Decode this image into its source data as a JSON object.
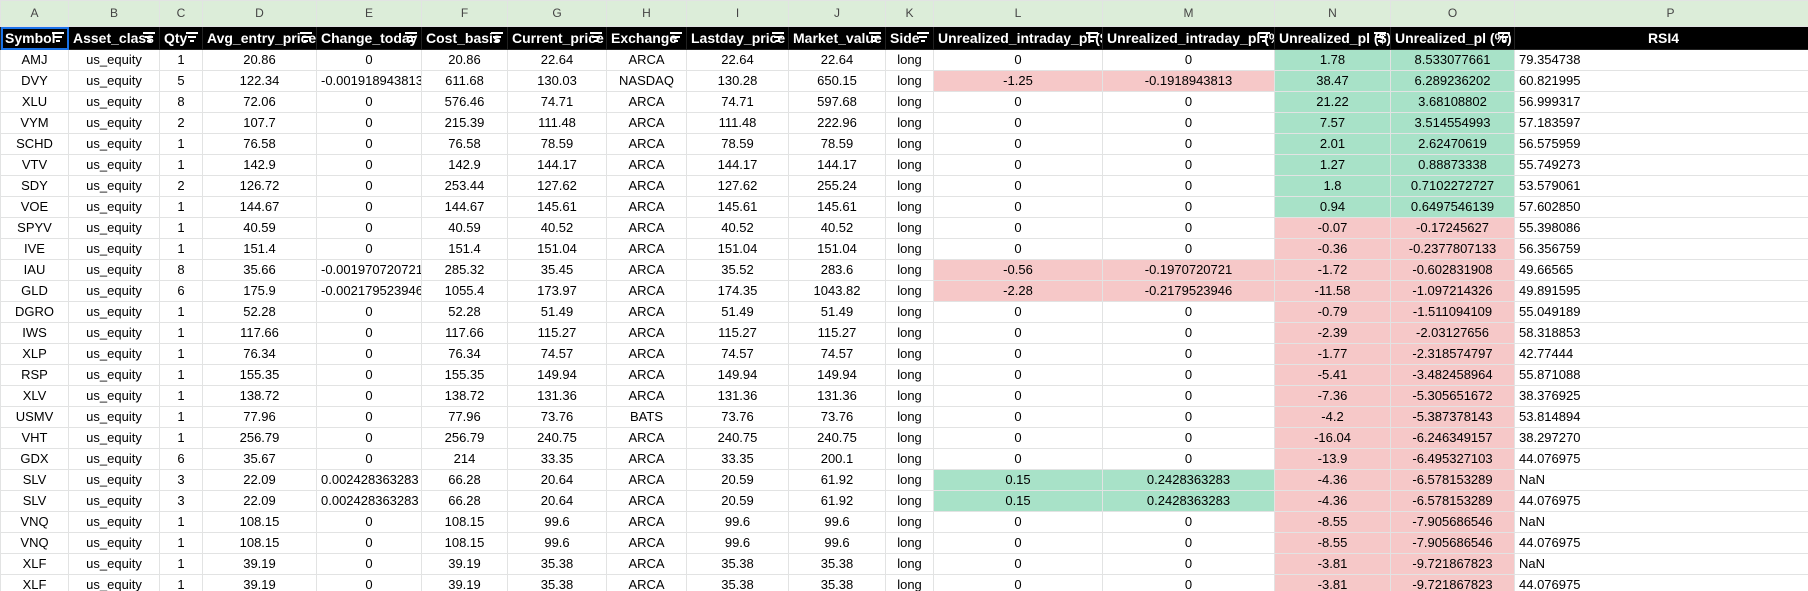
{
  "column_letters": [
    "A",
    "B",
    "C",
    "D",
    "E",
    "F",
    "G",
    "H",
    "I",
    "J",
    "K",
    "L",
    "M",
    "N",
    "O",
    "P"
  ],
  "headers": [
    "Symbol",
    "Asset_class",
    "Qty",
    "Avg_entry_price",
    "Change_today",
    "Cost_basis",
    "Current_price",
    "Exchange",
    "Lastday_price",
    "Market_value",
    "Side",
    "Unrealized_intraday_pl ($)",
    "Unrealized_intraday_pl (%)",
    "Unrealized_pl ($)",
    "Unrealized_pl (%)",
    "RSI4"
  ],
  "colors": {
    "negative": "#f6c8c8",
    "positive": "#a8e2c8",
    "header_bg": "#000000",
    "column_header_bg": "#dcedd9"
  },
  "rows": [
    [
      "AMJ",
      "us_equity",
      "1",
      "20.86",
      "0",
      "20.86",
      "22.64",
      "ARCA",
      "22.64",
      "22.64",
      "long",
      "0",
      "0",
      "1.78",
      "8.533077661",
      "79.354738"
    ],
    [
      "DVY",
      "us_equity",
      "5",
      "122.34",
      "-0.001918943813",
      "611.68",
      "130.03",
      "NASDAQ",
      "130.28",
      "650.15",
      "long",
      "-1.25",
      "-0.1918943813",
      "38.47",
      "6.289236202",
      "60.821995"
    ],
    [
      "XLU",
      "us_equity",
      "8",
      "72.06",
      "0",
      "576.46",
      "74.71",
      "ARCA",
      "74.71",
      "597.68",
      "long",
      "0",
      "0",
      "21.22",
      "3.68108802",
      "56.999317"
    ],
    [
      "VYM",
      "us_equity",
      "2",
      "107.7",
      "0",
      "215.39",
      "111.48",
      "ARCA",
      "111.48",
      "222.96",
      "long",
      "0",
      "0",
      "7.57",
      "3.514554993",
      "57.183597"
    ],
    [
      "SCHD",
      "us_equity",
      "1",
      "76.58",
      "0",
      "76.58",
      "78.59",
      "ARCA",
      "78.59",
      "78.59",
      "long",
      "0",
      "0",
      "2.01",
      "2.62470619",
      "56.575959"
    ],
    [
      "VTV",
      "us_equity",
      "1",
      "142.9",
      "0",
      "142.9",
      "144.17",
      "ARCA",
      "144.17",
      "144.17",
      "long",
      "0",
      "0",
      "1.27",
      "0.88873338",
      "55.749273"
    ],
    [
      "SDY",
      "us_equity",
      "2",
      "126.72",
      "0",
      "253.44",
      "127.62",
      "ARCA",
      "127.62",
      "255.24",
      "long",
      "0",
      "0",
      "1.8",
      "0.7102272727",
      "53.579061"
    ],
    [
      "VOE",
      "us_equity",
      "1",
      "144.67",
      "0",
      "144.67",
      "145.61",
      "ARCA",
      "145.61",
      "145.61",
      "long",
      "0",
      "0",
      "0.94",
      "0.6497546139",
      "57.602850"
    ],
    [
      "SPYV",
      "us_equity",
      "1",
      "40.59",
      "0",
      "40.59",
      "40.52",
      "ARCA",
      "40.52",
      "40.52",
      "long",
      "0",
      "0",
      "-0.07",
      "-0.17245627",
      "55.398086"
    ],
    [
      "IVE",
      "us_equity",
      "1",
      "151.4",
      "0",
      "151.4",
      "151.04",
      "ARCA",
      "151.04",
      "151.04",
      "long",
      "0",
      "0",
      "-0.36",
      "-0.2377807133",
      "56.356759"
    ],
    [
      "IAU",
      "us_equity",
      "8",
      "35.66",
      "-0.001970720721",
      "285.32",
      "35.45",
      "ARCA",
      "35.52",
      "283.6",
      "long",
      "-0.56",
      "-0.1970720721",
      "-1.72",
      "-0.602831908",
      "49.66565"
    ],
    [
      "GLD",
      "us_equity",
      "6",
      "175.9",
      "-0.002179523946",
      "1055.4",
      "173.97",
      "ARCA",
      "174.35",
      "1043.82",
      "long",
      "-2.28",
      "-0.2179523946",
      "-11.58",
      "-1.097214326",
      "49.891595"
    ],
    [
      "DGRO",
      "us_equity",
      "1",
      "52.28",
      "0",
      "52.28",
      "51.49",
      "ARCA",
      "51.49",
      "51.49",
      "long",
      "0",
      "0",
      "-0.79",
      "-1.511094109",
      "55.049189"
    ],
    [
      "IWS",
      "us_equity",
      "1",
      "117.66",
      "0",
      "117.66",
      "115.27",
      "ARCA",
      "115.27",
      "115.27",
      "long",
      "0",
      "0",
      "-2.39",
      "-2.03127656",
      "58.318853"
    ],
    [
      "XLP",
      "us_equity",
      "1",
      "76.34",
      "0",
      "76.34",
      "74.57",
      "ARCA",
      "74.57",
      "74.57",
      "long",
      "0",
      "0",
      "-1.77",
      "-2.318574797",
      "42.77444"
    ],
    [
      "RSP",
      "us_equity",
      "1",
      "155.35",
      "0",
      "155.35",
      "149.94",
      "ARCA",
      "149.94",
      "149.94",
      "long",
      "0",
      "0",
      "-5.41",
      "-3.482458964",
      "55.871088"
    ],
    [
      "XLV",
      "us_equity",
      "1",
      "138.72",
      "0",
      "138.72",
      "131.36",
      "ARCA",
      "131.36",
      "131.36",
      "long",
      "0",
      "0",
      "-7.36",
      "-5.305651672",
      "38.376925"
    ],
    [
      "USMV",
      "us_equity",
      "1",
      "77.96",
      "0",
      "77.96",
      "73.76",
      "BATS",
      "73.76",
      "73.76",
      "long",
      "0",
      "0",
      "-4.2",
      "-5.387378143",
      "53.814894"
    ],
    [
      "VHT",
      "us_equity",
      "1",
      "256.79",
      "0",
      "256.79",
      "240.75",
      "ARCA",
      "240.75",
      "240.75",
      "long",
      "0",
      "0",
      "-16.04",
      "-6.246349157",
      "38.297270"
    ],
    [
      "GDX",
      "us_equity",
      "6",
      "35.67",
      "0",
      "214",
      "33.35",
      "ARCA",
      "33.35",
      "200.1",
      "long",
      "0",
      "0",
      "-13.9",
      "-6.495327103",
      "44.076975"
    ],
    [
      "SLV",
      "us_equity",
      "3",
      "22.09",
      "0.002428363283",
      "66.28",
      "20.64",
      "ARCA",
      "20.59",
      "61.92",
      "long",
      "0.15",
      "0.2428363283",
      "-4.36",
      "-6.578153289",
      "NaN"
    ],
    [
      "SLV",
      "us_equity",
      "3",
      "22.09",
      "0.002428363283",
      "66.28",
      "20.64",
      "ARCA",
      "20.59",
      "61.92",
      "long",
      "0.15",
      "0.2428363283",
      "-4.36",
      "-6.578153289",
      "44.076975"
    ],
    [
      "VNQ",
      "us_equity",
      "1",
      "108.15",
      "0",
      "108.15",
      "99.6",
      "ARCA",
      "99.6",
      "99.6",
      "long",
      "0",
      "0",
      "-8.55",
      "-7.905686546",
      "NaN"
    ],
    [
      "VNQ",
      "us_equity",
      "1",
      "108.15",
      "0",
      "108.15",
      "99.6",
      "ARCA",
      "99.6",
      "99.6",
      "long",
      "0",
      "0",
      "-8.55",
      "-7.905686546",
      "44.076975"
    ],
    [
      "XLF",
      "us_equity",
      "1",
      "39.19",
      "0",
      "39.19",
      "35.38",
      "ARCA",
      "35.38",
      "35.38",
      "long",
      "0",
      "0",
      "-3.81",
      "-9.721867823",
      "NaN"
    ],
    [
      "XLF",
      "us_equity",
      "1",
      "39.19",
      "0",
      "39.19",
      "35.38",
      "ARCA",
      "35.38",
      "35.38",
      "long",
      "0",
      "0",
      "-3.81",
      "-9.721867823",
      "44.076975"
    ]
  ]
}
